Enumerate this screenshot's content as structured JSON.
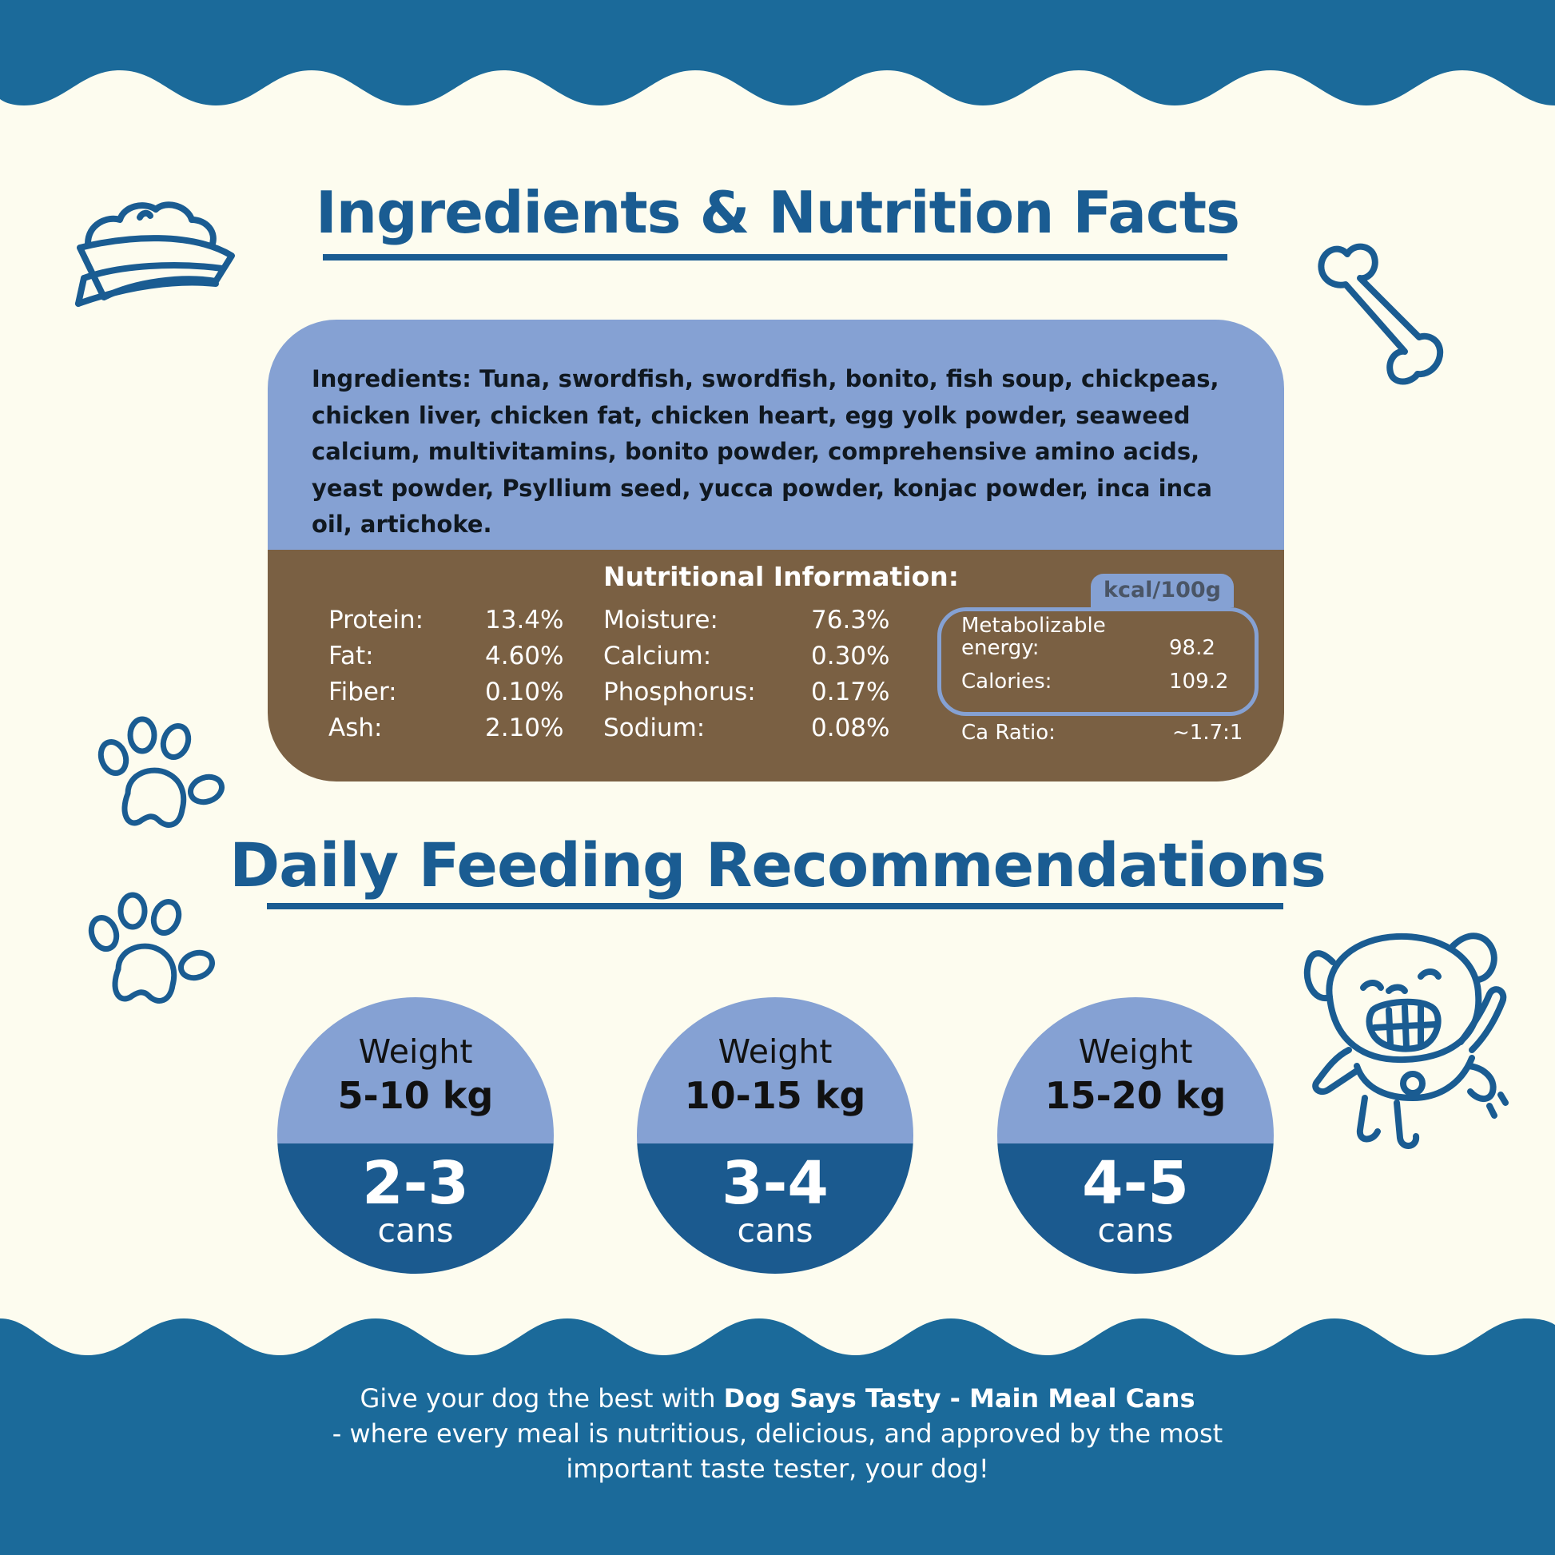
{
  "colors": {
    "background": "#fdfcef",
    "brand_blue": "#1a5c92",
    "light_blue": "#85a1d3",
    "brown": "#7a6043",
    "dark_blue": "#1b5a8f"
  },
  "icons": [
    "dog-bowl-icon",
    "bone-icon",
    "paw-icon",
    "paw-icon",
    "happy-dog-icon"
  ],
  "sections": {
    "nutrition_title": "Ingredients & Nutrition Facts",
    "feeding_title": "Daily Feeding Recommendations"
  },
  "ingredients": {
    "label": "Ingredients:",
    "text": " Tuna, swordfish, swordfish, bonito, fish soup, chickpeas, chicken liver, chicken fat, chicken heart, egg yolk powder, seaweed calcium, multivitamins, bonito powder, comprehensive amino acids, yeast powder, Psyllium seed, yucca powder, konjac powder, inca inca oil, artichoke."
  },
  "nutrition": {
    "title": "Nutritional Information:",
    "col1": [
      {
        "name": "Protein:",
        "value": "13.4%"
      },
      {
        "name": "Fat:",
        "value": "4.60%"
      },
      {
        "name": "Fiber:",
        "value": "0.10%"
      },
      {
        "name": "Ash:",
        "value": "2.10%"
      }
    ],
    "col2": [
      {
        "name": "Moisture:",
        "value": "76.3%"
      },
      {
        "name": "Calcium:",
        "value": "0.30%"
      },
      {
        "name": "Phosphorus:",
        "value": "0.17%"
      },
      {
        "name": "Sodium:",
        "value": "0.08%"
      }
    ],
    "kcal_unit": "kcal/100g",
    "energy_label_line1": "Metabolizable",
    "energy_label_line2": "energy:",
    "energy_value": "98.2",
    "calories_label": "Calories:",
    "calories_value": "109.2",
    "ca_ratio_label": "Ca Ratio:",
    "ca_ratio_value": "~1.7:1"
  },
  "feeding": [
    {
      "weight_label": "Weight",
      "range": "5-10 kg",
      "amount": "2-3",
      "unit": "cans"
    },
    {
      "weight_label": "Weight",
      "range": "10-15 kg",
      "amount": "3-4",
      "unit": "cans"
    },
    {
      "weight_label": "Weight",
      "range": "15-20 kg",
      "amount": "4-5",
      "unit": "cans"
    }
  ],
  "footer": {
    "line1_prefix": "Give your dog the best with ",
    "brand": "Dog Says Tasty - Main Meal Cans",
    "line2": "- where every meal is nutritious, delicious, and approved by the most",
    "line3": "important taste tester, your dog!"
  }
}
